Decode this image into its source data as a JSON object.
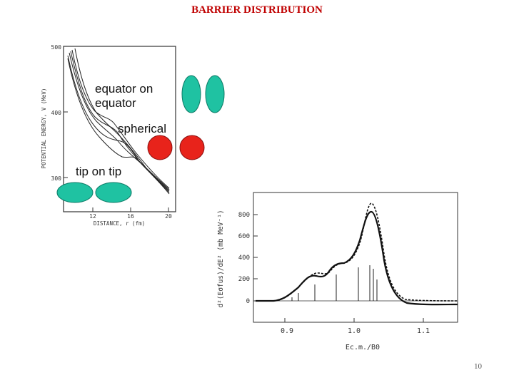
{
  "slide": {
    "title": "BARRIER DISTRIBUTION",
    "page_number": "10"
  },
  "colors": {
    "title": "#c00000",
    "teal": "#1fc2a2",
    "red": "#e8231b"
  },
  "potential_plot": {
    "y_label": "POTENTIAL ENERGY, V (MeV)",
    "x_label": "DISTANCE, r (fm)",
    "y_ticks": [
      "500",
      "400",
      "300"
    ],
    "x_ticks": [
      "12",
      "16",
      "20"
    ],
    "labels": {
      "equator_line1": "equator on",
      "equator_line2": "equator",
      "spherical": "spherical",
      "tip": "tip on tip"
    }
  },
  "distribution_plot": {
    "y_label": "d²(Eσfus)/dE²  (mb MeV⁻¹)",
    "x_label": "Ec.m./B0",
    "y_ticks": [
      "800",
      "600",
      "400",
      "200",
      "0"
    ],
    "x_ticks": [
      "0.9",
      "1.0",
      "1.1"
    ]
  }
}
